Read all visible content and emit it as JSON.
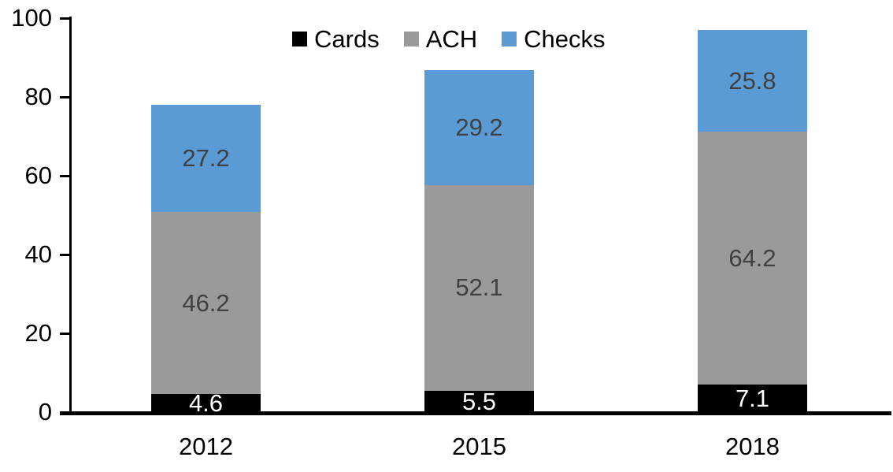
{
  "chart_data": {
    "type": "bar",
    "stacked": true,
    "title": "",
    "xlabel": "",
    "ylabel": "",
    "categories": [
      "2012",
      "2015",
      "2018"
    ],
    "series": [
      {
        "name": "Cards",
        "color": "#000000",
        "label_color": "#ffffff",
        "values": [
          4.6,
          5.5,
          7.1
        ]
      },
      {
        "name": "ACH",
        "color": "#9a9a9a",
        "label_color": "#404040",
        "values": [
          46.2,
          52.1,
          64.2
        ]
      },
      {
        "name": "Checks",
        "color": "#5b9bd5",
        "label_color": "#404040",
        "values": [
          27.2,
          29.2,
          25.8
        ]
      }
    ],
    "totals": [
      78.0,
      86.8,
      97.1
    ],
    "y_ticks": [
      0,
      20,
      40,
      60,
      80,
      100
    ],
    "ylim": [
      0,
      100
    ],
    "grid": false,
    "legend_position": "top-center",
    "axis_color": "#000000",
    "background_color": "#ffffff"
  }
}
